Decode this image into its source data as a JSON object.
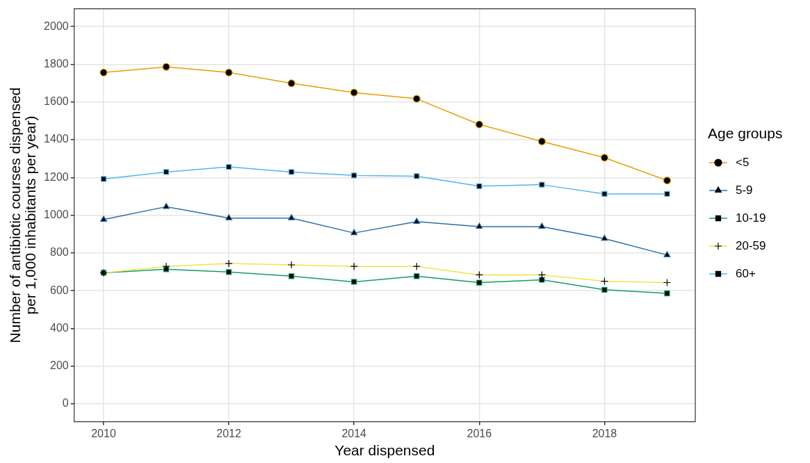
{
  "chart_data": {
    "type": "line",
    "xlabel": "Year dispensed",
    "ylabel": "Number of antibiotic courses dispensed per 1,000 inhabitants per year)",
    "legend_title": "Age groups",
    "legend": "right",
    "grid": true,
    "x": [
      2010,
      2011,
      2012,
      2013,
      2014,
      2015,
      2016,
      2017,
      2018,
      2019
    ],
    "xlim": [
      2009.53,
      2019.45
    ],
    "xticks": [
      2010,
      2012,
      2014,
      2016,
      2018
    ],
    "ylim": [
      -94,
      2094
    ],
    "yticks": [
      0,
      200,
      400,
      600,
      800,
      1000,
      1200,
      1400,
      1600,
      1800,
      2000
    ],
    "series": [
      {
        "name": "<5",
        "color": "#e69f00",
        "marker": "circle",
        "values": [
          1756,
          1786,
          1756,
          1699,
          1650,
          1617,
          1481,
          1391,
          1305,
          1184
        ]
      },
      {
        "name": "5-9",
        "color": "#2a6ea6",
        "marker": "triangle",
        "values": [
          977,
          1045,
          985,
          985,
          906,
          966,
          940,
          940,
          876,
          789
        ]
      },
      {
        "name": "10-19",
        "color": "#119b6e",
        "marker": "square",
        "values": [
          695,
          714,
          699,
          677,
          647,
          677,
          643,
          658,
          605,
          586
        ]
      },
      {
        "name": "20-59",
        "color": "#f0e442",
        "marker": "cross",
        "values": [
          695,
          729,
          744,
          737,
          729,
          729,
          684,
          684,
          650,
          643
        ]
      },
      {
        "name": "60+",
        "color": "#56b4e9",
        "marker": "square",
        "values": [
          1192,
          1229,
          1256,
          1229,
          1211,
          1207,
          1154,
          1162,
          1113,
          1113
        ]
      }
    ]
  }
}
